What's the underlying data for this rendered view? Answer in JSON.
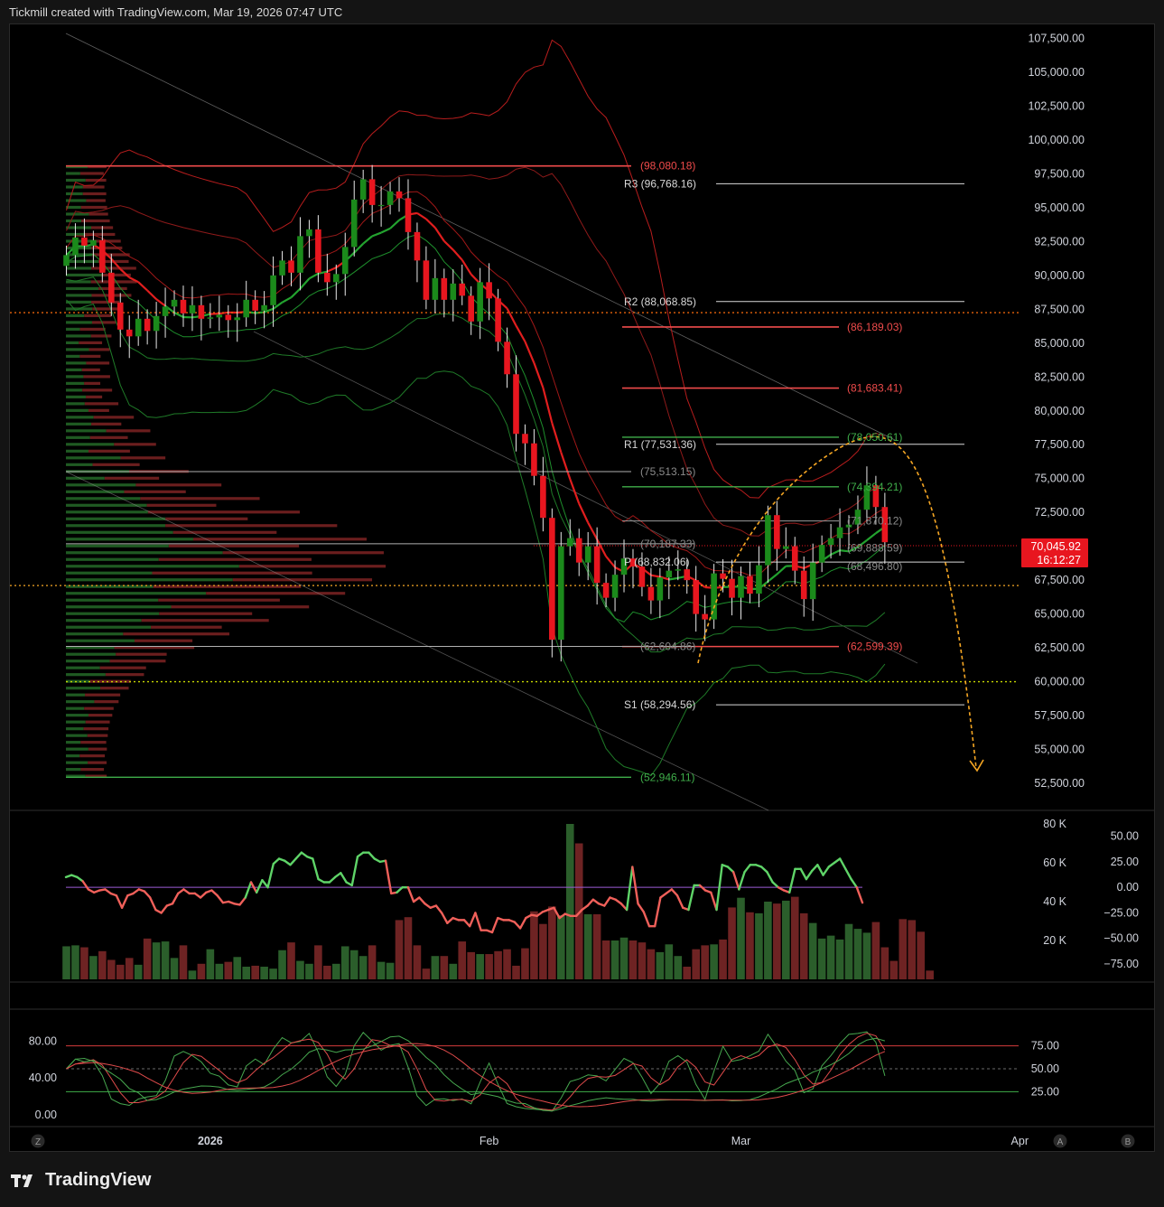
{
  "header": {
    "caption": "Tickmill created with TradingView.com, Mar 19, 2026 07:47 UTC"
  },
  "footer": {
    "brand": "TradingView"
  },
  "colors": {
    "bull": "#1b8a1b",
    "bear": "#e8161f",
    "pivot": "#bdbdbd",
    "bullLine": "#3fae4a",
    "bearLine": "#ef3b3b",
    "forecast": "#f5a623",
    "price_tag": "#e8161f"
  },
  "chart_data": [
    {
      "type": "candlestick",
      "title": "",
      "xlabel": "",
      "ylabel": "",
      "ylim": [
        50500,
        108200
      ],
      "y_ticks": [
        "107,500.00",
        "105,000.00",
        "102,500.00",
        "100,000.00",
        "97,500.00",
        "95,000.00",
        "92,500.00",
        "90,000.00",
        "87,500.00",
        "85,000.00",
        "82,500.00",
        "80,000.00",
        "77,500.00",
        "75,000.00",
        "72,500.00",
        "70,000.00",
        "67,500.00",
        "65,000.00",
        "62,500.00",
        "60,000.00",
        "57,500.00",
        "55,000.00",
        "52,500.00"
      ],
      "y_tick_values": [
        107500,
        105000,
        102500,
        100000,
        97500,
        95000,
        92500,
        90000,
        87500,
        85000,
        82500,
        80000,
        77500,
        75000,
        72500,
        70000,
        67500,
        65000,
        62500,
        60000,
        57500,
        55000,
        52500
      ],
      "x_ticks": [
        {
          "label": "2026",
          "bar": 16
        },
        {
          "label": "Feb",
          "bar": 47
        },
        {
          "label": "Mar",
          "bar": 75
        },
        {
          "label": "Apr",
          "bar": 106
        }
      ],
      "last_price": {
        "label": "70,045.92",
        "countdown": "16:12:27",
        "value": 70045.92
      },
      "closes": [
        91500,
        92800,
        92200,
        92600,
        90200,
        88000,
        86000,
        85500,
        86800,
        85900,
        87000,
        87700,
        88200,
        87200,
        87800,
        86800,
        86900,
        87100,
        86700,
        86900,
        88200,
        87400,
        87800,
        90000,
        91100,
        90200,
        92900,
        93400,
        90200,
        89500,
        90100,
        92100,
        95600,
        97100,
        95200,
        95200,
        96200,
        95700,
        93200,
        91100,
        88200,
        89800,
        88200,
        89400,
        88500,
        86600,
        89500,
        88300,
        85100,
        82700,
        78300,
        77600,
        75200,
        72100,
        63100,
        70000,
        70600,
        68800,
        70000,
        67300,
        66200,
        67900,
        69100,
        68500,
        67000,
        66000,
        67700,
        68200,
        68300,
        67500,
        65000,
        64600,
        68000,
        67600,
        66200,
        67800,
        66500,
        68600,
        72300,
        69800,
        70000,
        68200,
        66100,
        68800,
        70100,
        70600,
        71400,
        71600,
        72700,
        74500,
        72900,
        70300
      ]
    },
    {
      "type": "bar",
      "title": "",
      "ylim": [
        0,
        80000
      ],
      "y_ticks": [
        "80 K",
        "60 K",
        "40 K",
        "20 K"
      ],
      "y_tick_values": [
        80000,
        60000,
        40000,
        20000
      ],
      "oscillator_ylim": [
        -90,
        62
      ],
      "oscillator_ticks": [
        "50.00",
        "25.00",
        "0.00",
        "−25.00",
        "−50.00",
        "−75.00"
      ],
      "oscillator_tick_values": [
        50,
        25,
        0,
        -25,
        -50,
        -75
      ],
      "volume": [
        17000,
        17500,
        16500,
        12000,
        14500,
        10000,
        7500,
        11000,
        7500,
        21000,
        19000,
        19500,
        11000,
        17500,
        4500,
        8000,
        15500,
        8000,
        9000,
        11500,
        6500,
        7000,
        6500,
        5500,
        15000,
        19000,
        9500,
        8000,
        17500,
        7000,
        8000,
        17000,
        15000,
        12000,
        17500,
        9000,
        8500,
        30500,
        32000,
        17500,
        5500,
        12000,
        12000,
        8000,
        19500,
        14000,
        13000,
        13000,
        14500,
        15500,
        7000,
        16000,
        35000,
        28500,
        37500,
        33000,
        80000,
        70000,
        33500,
        33500,
        20000,
        20000,
        21500,
        20000,
        19000,
        15500,
        14000,
        18000,
        12000,
        6500,
        15500,
        17500,
        18000,
        20500,
        37000,
        42000,
        34500,
        34000,
        40000,
        39000,
        40500,
        42500,
        34000,
        29000,
        21000,
        22500,
        20500,
        28500,
        26000,
        24000,
        29500,
        16500,
        9500,
        31000,
        30500,
        24500,
        4500
      ],
      "momentum": [
        10,
        12,
        10,
        6,
        -2,
        -5,
        -3,
        -2,
        -6,
        -8,
        -20,
        -8,
        -6,
        -2,
        -4,
        -10,
        -22,
        -25,
        -18,
        -16,
        -6,
        -2,
        -6,
        -6,
        -10,
        -5,
        -3,
        -8,
        -15,
        -14,
        -16,
        -17,
        -10,
        5,
        -5,
        7,
        0,
        23,
        28,
        26,
        22,
        28,
        34,
        30,
        28,
        8,
        5,
        5,
        10,
        14,
        5,
        2,
        30,
        34,
        34,
        28,
        25,
        26,
        -6,
        -5,
        0,
        0,
        -14,
        -10,
        -16,
        -20,
        -18,
        -25,
        -35,
        -30,
        -32,
        -32,
        -38,
        -25,
        -42,
        -42,
        -44,
        -30,
        -32,
        -32,
        -34,
        -40,
        -30,
        -27,
        -28,
        -24,
        -22,
        -20,
        -30,
        -26,
        -28,
        -28,
        -22,
        -18,
        -12,
        -16,
        -18,
        -10,
        -12,
        -16,
        -22,
        20,
        -16,
        -24,
        -38,
        -38,
        -10,
        -6,
        -2,
        -8,
        -20,
        -22,
        2,
        2,
        -3,
        -5,
        -22,
        22,
        20,
        15,
        -2,
        15,
        22,
        22,
        20,
        15,
        5,
        0,
        -3,
        -5,
        18,
        18,
        8,
        16,
        22,
        12,
        20,
        24,
        28,
        18,
        8,
        0,
        -15
      ]
    },
    {
      "type": "line",
      "title": "",
      "ylim": [
        -8,
        108
      ],
      "left_ticks": [
        "80.00",
        "40.00",
        "0.00"
      ],
      "left_tick_values": [
        80,
        40,
        0
      ],
      "right_ticks": [
        "75.00",
        "50.00",
        "25.00"
      ],
      "right_tick_values": [
        75,
        50,
        25
      ]
    }
  ],
  "drawings": {
    "pivot_labels": [
      {
        "text": "R3 (96,768.16)",
        "value": 96768.16
      },
      {
        "text": "R2 (88,068.85)",
        "value": 88068.85
      },
      {
        "text": "R1 (77,531.36)",
        "value": 77531.36
      },
      {
        "text": "P (68,832.06)",
        "value": 68832.06
      },
      {
        "text": "S1 (58,294.56)",
        "value": 58294.56
      }
    ],
    "red_levels": [
      {
        "text": "(98,080.18)",
        "value": 98080.18
      },
      {
        "text": "(86,189.03)",
        "value": 86189.03
      },
      {
        "text": "(81,683.41)",
        "value": 81683.41
      },
      {
        "text": "(62,599.39)",
        "value": 62599.39
      }
    ],
    "green_levels": [
      {
        "text": "(78,050.61)",
        "value": 78050.61
      },
      {
        "text": "(74,394.21)",
        "value": 74394.21
      },
      {
        "text": "(52,946.11)",
        "value": 52946.11
      }
    ],
    "gray_levels": [
      {
        "text": "(75,513.15)",
        "value": 75513.15
      },
      {
        "text": "(70,187.33)",
        "value": 70187.33
      },
      {
        "text": "(71,870.12)",
        "value": 71870.12
      },
      {
        "text": "(69,888.59)",
        "value": 69888.59
      },
      {
        "text": "(68,496.80)",
        "value": 68496.8
      },
      {
        "text": "(62,604.86)",
        "value": 62604.86
      }
    ],
    "dotted_levels": [
      87250,
      67100,
      60000
    ]
  },
  "scale_buttons": {
    "left": "Z",
    "right_a": "A",
    "right_b": "B"
  }
}
